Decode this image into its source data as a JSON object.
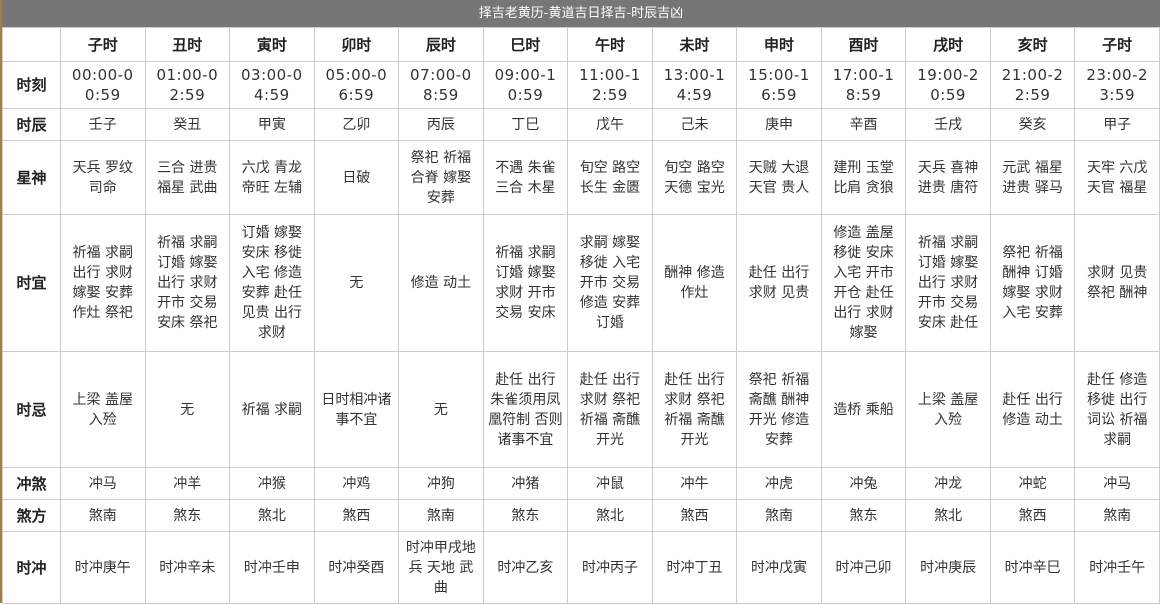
{
  "title": "择吉老黄历-黄道吉日择吉-时辰吉凶",
  "headers": [
    "子时",
    "丑时",
    "寅时",
    "卯时",
    "辰时",
    "巳时",
    "午时",
    "未时",
    "申时",
    "酉时",
    "戌时",
    "亥时",
    "子时"
  ],
  "rows": [
    {
      "key": "time",
      "label": "时刻",
      "values": [
        "00:00-00:59",
        "01:00-02:59",
        "03:00-04:59",
        "05:00-06:59",
        "07:00-08:59",
        "09:00-10:59",
        "11:00-12:59",
        "13:00-14:59",
        "15:00-16:59",
        "17:00-18:59",
        "19:00-20:59",
        "21:00-22:59",
        "23:00-23:59"
      ]
    },
    {
      "key": "gz",
      "label": "时辰",
      "values": [
        "壬子",
        "癸丑",
        "甲寅",
        "乙卯",
        "丙辰",
        "丁巳",
        "戊午",
        "己未",
        "庚申",
        "辛酉",
        "壬戌",
        "癸亥",
        "甲子"
      ]
    },
    {
      "key": "star",
      "label": "星神",
      "values": [
        "天兵 罗纹 司命",
        "三合 进贵 福星 武曲",
        "六戊 青龙 帝旺 左辅",
        "日破",
        "祭祀 祈福 合脊 嫁娶 安葬",
        "不遇 朱雀 三合 木星",
        "旬空 路空 长生 金匮",
        "旬空 路空 天德 宝光",
        "天贼 大退 天官 贵人",
        "建刑 玉堂 比肩 贪狼",
        "天兵 喜神 进贵 唐符",
        "元武 福星 进贵 驿马",
        "天牢 六戊 天官 福星"
      ]
    },
    {
      "key": "yi",
      "label": "时宜",
      "values": [
        "祈福 求嗣 出行 求财 嫁娶 安葬 作灶 祭祀",
        "祈福 求嗣 订婚 嫁娶 出行 求财 开市 交易 安床 祭祀",
        "订婚 嫁娶 安床 移徙 入宅 修造 安葬 赴任 见贵 出行 求财",
        "无",
        "修造 动土",
        "祈福 求嗣 订婚 嫁娶 求财 开市 交易 安床",
        "求嗣 嫁娶 移徙 入宅 开市 交易 修造 安葬 订婚",
        "酬神 修造 作灶",
        "赴任 出行 求财 见贵",
        "修造 盖屋 移徙 安床 入宅 开市 开仓 赴任 出行 求财 嫁娶",
        "祈福 求嗣 订婚 嫁娶 出行 求财 开市 交易 安床 赴任",
        "祭祀 祈福 酬神 订婚 嫁娶 求财 入宅 安葬",
        "求财 见贵 祭祀 酬神"
      ]
    },
    {
      "key": "ji",
      "label": "时忌",
      "values": [
        "上梁 盖屋 入殓",
        "无",
        "祈福 求嗣",
        "日时相冲诸事不宜",
        "无",
        "赴任 出行 朱雀须用凤凰符制 否则 诸事不宜",
        "赴任 出行 求财 祭祀 祈福 斋醮 开光",
        "赴任 出行 求财 祭祀 祈福 斋醮 开光",
        "祭祀 祈福 斋醮 酬神 开光 修造 安葬",
        "造桥 乘船",
        "上梁 盖屋 入殓",
        "赴任 出行 修造 动土",
        "赴任 修造 移徙 出行 词讼 祈福 求嗣"
      ]
    },
    {
      "key": "chong",
      "label": "冲煞",
      "values": [
        "冲马",
        "冲羊",
        "冲猴",
        "冲鸡",
        "冲狗",
        "冲猪",
        "冲鼠",
        "冲牛",
        "冲虎",
        "冲兔",
        "冲龙",
        "冲蛇",
        "冲马"
      ]
    },
    {
      "key": "fang",
      "label": "煞方",
      "values": [
        "煞南",
        "煞东",
        "煞北",
        "煞西",
        "煞南",
        "煞东",
        "煞北",
        "煞西",
        "煞南",
        "煞东",
        "煞北",
        "煞西",
        "煞南"
      ]
    },
    {
      "key": "sc",
      "label": "时冲",
      "values": [
        "时冲庚午",
        "时冲辛未",
        "时冲壬申",
        "时冲癸酉",
        "时冲甲戌地兵 天地 武曲",
        "时冲乙亥",
        "时冲丙子",
        "时冲丁丑",
        "时冲戊寅",
        "时冲己卯",
        "时冲庚辰",
        "时冲辛巳",
        "时冲壬午"
      ]
    }
  ]
}
